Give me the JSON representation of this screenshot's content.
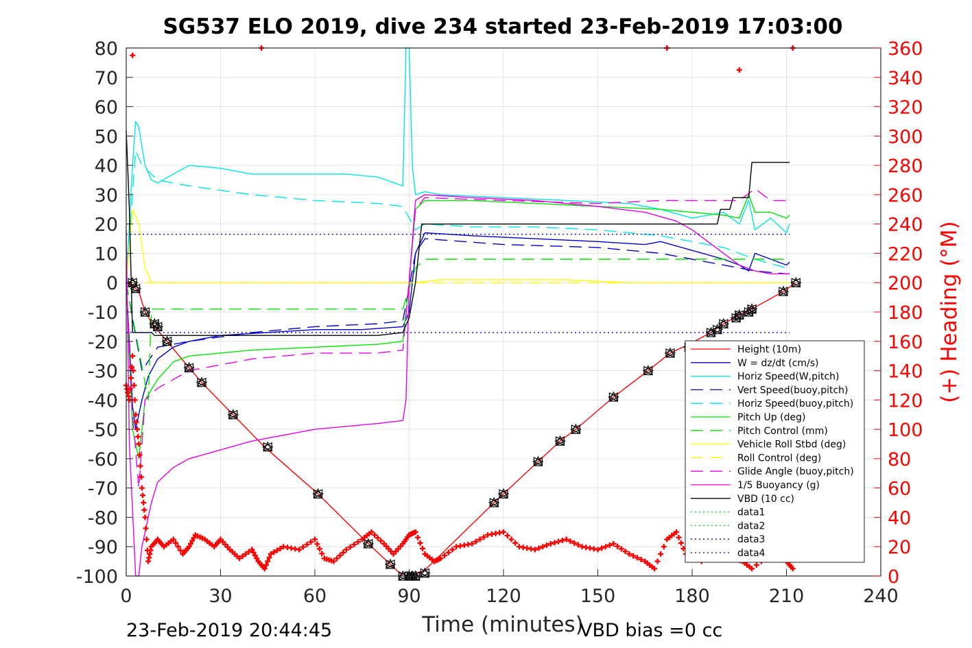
{
  "chart_data": {
    "type": "line",
    "title": "SG537 ELO 2019, dive 234 started 23-Feb-2019 17:03:00",
    "xlabel": "Time (minutes)",
    "ylabel_right": "(+) Heading (°M)",
    "xlim": [
      0,
      240
    ],
    "ylim": [
      -100,
      80
    ],
    "ylim_right": [
      0,
      360
    ],
    "xticks": [
      "0",
      "30",
      "60",
      "90",
      "120",
      "150",
      "180",
      "210",
      "240"
    ],
    "yticks": [
      "80",
      "70",
      "60",
      "50",
      "40",
      "30",
      "20",
      "10",
      "0",
      "-10",
      "-20",
      "-30",
      "-40",
      "-50",
      "-60",
      "-70",
      "-80",
      "-90",
      "-100"
    ],
    "yticks_right": [
      "360",
      "340",
      "320",
      "300",
      "280",
      "260",
      "240",
      "220",
      "200",
      "180",
      "160",
      "140",
      "120",
      "100",
      "80",
      "60",
      "40",
      "20",
      "0"
    ],
    "grid": true,
    "legend_position": "lower-right",
    "footer_left": "23-Feb-2019 20:44:45",
    "footer_right": "VBD bias =0 cc",
    "series": [
      {
        "name": "Height (10m)",
        "color": "#ff0000",
        "style": "solid",
        "x": [
          0,
          2,
          4,
          6,
          9,
          13,
          20,
          24,
          34,
          44,
          61,
          77,
          84,
          88,
          90,
          93,
          95,
          117,
          120,
          131,
          138,
          143,
          155,
          166,
          173,
          179,
          186,
          190,
          195,
          199,
          209,
          213
        ],
        "y": [
          0,
          -1,
          -3,
          -10,
          -15,
          -20,
          -29,
          -34,
          -45,
          -56,
          -72,
          -89,
          -96,
          -100,
          -100,
          -99,
          -98,
          -75,
          -72,
          -61,
          -54,
          -50,
          -39,
          -30,
          -24,
          -21,
          -17,
          -14,
          -11,
          -9,
          -3,
          0
        ]
      },
      {
        "name": "W = dz/dt (cm/s)",
        "color": "#0000cc",
        "style": "solid",
        "x": [
          0,
          1,
          2,
          3,
          5,
          7,
          10,
          15,
          20,
          30,
          45,
          60,
          75,
          88,
          90,
          92,
          95,
          110,
          130,
          150,
          165,
          170,
          180,
          190,
          195,
          198,
          200,
          205,
          210,
          211
        ],
        "y": [
          0,
          -20,
          -42,
          -50,
          -40,
          -32,
          -26,
          -22,
          -20,
          -18,
          -17,
          -16,
          -16,
          -15,
          -10,
          10,
          17,
          16,
          15,
          14,
          13,
          14,
          11,
          8,
          6,
          4,
          10,
          8,
          6,
          7
        ]
      },
      {
        "name": "Horiz Speed(W,pitch)",
        "color": "#00e5e5",
        "style": "solid",
        "x": [
          0,
          2,
          3,
          4,
          6,
          8,
          10,
          15,
          20,
          30,
          40,
          50,
          60,
          70,
          80,
          88,
          89,
          90,
          91,
          92,
          95,
          100,
          120,
          140,
          160,
          170,
          180,
          190,
          195,
          198,
          200,
          205,
          210,
          211
        ],
        "y": [
          0,
          40,
          55,
          53,
          40,
          35,
          34,
          37,
          40,
          39,
          37,
          37,
          37,
          37,
          36,
          33,
          80,
          80,
          40,
          30,
          31,
          30,
          29,
          28,
          27,
          25,
          22,
          24,
          20,
          28,
          18,
          22,
          17,
          20
        ]
      },
      {
        "name": "Vert Speed(buoy,pitch)",
        "color": "#0000cc",
        "style": "dashed",
        "x": [
          0,
          5,
          10,
          20,
          40,
          60,
          80,
          88,
          92,
          95,
          120,
          150,
          170,
          180,
          190,
          195,
          200,
          210,
          211
        ],
        "y": [
          0,
          -30,
          -22,
          -20,
          -17,
          -15,
          -14,
          -13,
          10,
          15,
          13,
          12,
          10,
          8,
          6,
          5,
          4,
          3,
          3
        ]
      },
      {
        "name": "Horiz Speed(buoy,pitch)",
        "color": "#00e5e5",
        "style": "dashed",
        "x": [
          0,
          3,
          5,
          10,
          20,
          40,
          60,
          80,
          88,
          92,
          95,
          110,
          130,
          150,
          170,
          180,
          190,
          195,
          200,
          210,
          211
        ],
        "y": [
          0,
          45,
          40,
          35,
          33,
          30,
          28,
          27,
          26,
          18,
          20,
          19,
          19,
          18,
          16,
          14,
          12,
          10,
          8,
          5,
          4
        ]
      },
      {
        "name": "Pitch Up (deg)",
        "color": "#00e600",
        "style": "solid",
        "x": [
          0,
          2,
          4,
          6,
          10,
          15,
          20,
          40,
          60,
          80,
          88,
          90,
          92,
          95,
          110,
          130,
          150,
          170,
          180,
          190,
          195,
          198,
          200,
          205,
          210,
          211
        ],
        "y": [
          0,
          -50,
          -60,
          -40,
          -33,
          -27,
          -25,
          -23,
          -22,
          -21,
          -20,
          0,
          25,
          28,
          28,
          27,
          26,
          25,
          24,
          23,
          22,
          30,
          24,
          24,
          22,
          23
        ]
      },
      {
        "name": "Pitch Control (mm)",
        "color": "#00e600",
        "style": "dashed",
        "x": [
          0,
          7,
          8,
          88,
          92,
          95,
          210,
          211
        ],
        "y": [
          0,
          -40,
          -9,
          -9,
          5,
          8,
          8,
          8
        ]
      },
      {
        "name": "Vehicle Roll Stbd (deg)",
        "color": "#ffff00",
        "style": "solid",
        "x": [
          0,
          2,
          4,
          6,
          8,
          10,
          20,
          40,
          60,
          80,
          88,
          92,
          100,
          120,
          140,
          160,
          170,
          180,
          190,
          200,
          210,
          211
        ],
        "y": [
          0,
          25,
          20,
          5,
          0,
          0,
          0,
          0,
          0,
          0,
          0,
          0,
          1,
          1,
          1,
          0,
          0,
          0,
          0,
          0,
          0,
          0
        ]
      },
      {
        "name": "Roll Control (deg)",
        "color": "#ffff00",
        "style": "dashed",
        "x": [
          0,
          8,
          9,
          88,
          90,
          95,
          200,
          210,
          211
        ],
        "y": [
          0,
          0,
          0,
          0,
          0,
          0,
          0,
          0,
          0
        ]
      },
      {
        "name": "Glide Angle (buoy,pitch)",
        "color": "#e600e6",
        "style": "dashed",
        "x": [
          0,
          2,
          4,
          6,
          10,
          20,
          40,
          60,
          80,
          88,
          92,
          95,
          120,
          150,
          170,
          185,
          195,
          200,
          205,
          210,
          211
        ],
        "y": [
          0,
          -45,
          -70,
          -40,
          -36,
          -30,
          -26,
          -24,
          -24,
          -23,
          25,
          29,
          28,
          27,
          28,
          28,
          28,
          32,
          28,
          28,
          29
        ]
      },
      {
        "name": "1/5 Buoyancy (g)",
        "color": "#e600e6",
        "style": "solid",
        "x": [
          0,
          1,
          3,
          4,
          5,
          8,
          10,
          15,
          20,
          30,
          40,
          60,
          80,
          88,
          89,
          90,
          92,
          95,
          110,
          130,
          150,
          165,
          175,
          180,
          185,
          190,
          195,
          200,
          205,
          210,
          211
        ],
        "y": [
          18,
          -55,
          -100,
          -100,
          -90,
          -75,
          -68,
          -63,
          -60,
          -57,
          -54,
          -50,
          -48,
          -47,
          -40,
          0,
          28,
          30,
          29,
          28,
          26,
          24,
          21,
          18,
          14,
          10,
          6,
          4,
          3,
          3,
          3
        ]
      },
      {
        "name": "VBD (10 cc)",
        "color": "#000000",
        "style": "solid",
        "x": [
          0,
          1,
          2,
          8,
          9,
          80,
          88,
          90,
          92,
          94,
          120,
          150,
          180,
          188,
          189,
          192,
          193,
          198,
          199,
          211
        ],
        "y": [
          52,
          25,
          -17,
          -17,
          -18,
          -18,
          -17,
          -12,
          0,
          20,
          20,
          20,
          20,
          20,
          25,
          25,
          29,
          29,
          41,
          41
        ]
      },
      {
        "name": "data1",
        "color": "#00e600",
        "style": "dotted",
        "x": [],
        "y": []
      },
      {
        "name": "data2",
        "color": "#00e600",
        "style": "dotted",
        "x": [],
        "y": []
      },
      {
        "name": "data3",
        "color": "#0000cc",
        "style": "dotted",
        "x": [
          0,
          211
        ],
        "y": [
          16.5,
          16.5
        ]
      },
      {
        "name": "data4",
        "color": "#0000cc",
        "style": "dotted",
        "x": [
          0,
          211
        ],
        "y": [
          -17,
          -17
        ]
      }
    ],
    "heading": {
      "color": "#ff0000",
      "marker": "+",
      "axis": "right",
      "x": [
        0,
        1,
        2,
        3,
        4,
        5,
        6,
        7,
        8,
        10,
        12,
        15,
        18,
        20,
        22,
        25,
        28,
        30,
        33,
        36,
        40,
        42,
        44,
        46,
        50,
        55,
        60,
        63,
        66,
        70,
        75,
        78,
        82,
        85,
        88,
        90,
        92,
        95,
        98,
        100,
        105,
        110,
        115,
        120,
        125,
        130,
        135,
        140,
        145,
        150,
        155,
        160,
        165,
        168,
        172,
        175,
        178,
        180,
        183,
        186,
        190,
        193,
        196,
        199,
        205,
        210,
        212
      ],
      "y": [
        130,
        120,
        150,
        110,
        90,
        60,
        40,
        10,
        20,
        25,
        20,
        25,
        15,
        20,
        28,
        25,
        20,
        25,
        18,
        12,
        18,
        10,
        5,
        15,
        20,
        18,
        25,
        12,
        10,
        18,
        25,
        30,
        22,
        15,
        22,
        28,
        30,
        15,
        10,
        12,
        20,
        22,
        28,
        30,
        20,
        18,
        22,
        25,
        20,
        18,
        22,
        15,
        10,
        5,
        25,
        30,
        15,
        20,
        10,
        15,
        18,
        12,
        10,
        5,
        15,
        10,
        5
      ]
    },
    "heading_wrap_points": {
      "x": [
        2,
        43,
        172,
        195,
        212
      ],
      "y": [
        355,
        360,
        360,
        345,
        360
      ]
    },
    "dive_markers": {
      "symbols": [
        "triangle",
        "triangle-left",
        "triangle-right"
      ],
      "x": [
        2,
        3,
        6,
        9,
        10,
        13,
        20,
        24,
        34,
        45,
        61,
        77,
        84,
        88,
        90,
        91,
        92,
        95,
        117,
        120,
        131,
        138,
        143,
        155,
        166,
        173,
        179,
        186,
        188,
        190,
        194,
        195,
        198,
        199,
        209,
        213
      ],
      "y": [
        0,
        -2,
        -10,
        -14,
        -15,
        -20,
        -29,
        -34,
        -45,
        -56,
        -72,
        -89,
        -96,
        -100,
        -100,
        -100,
        -100,
        -99,
        -75,
        -72,
        -61,
        -54,
        -50,
        -39,
        -30,
        -24,
        -22,
        -17,
        -16,
        -14,
        -12,
        -11,
        -10,
        -9,
        -3,
        0
      ]
    }
  }
}
